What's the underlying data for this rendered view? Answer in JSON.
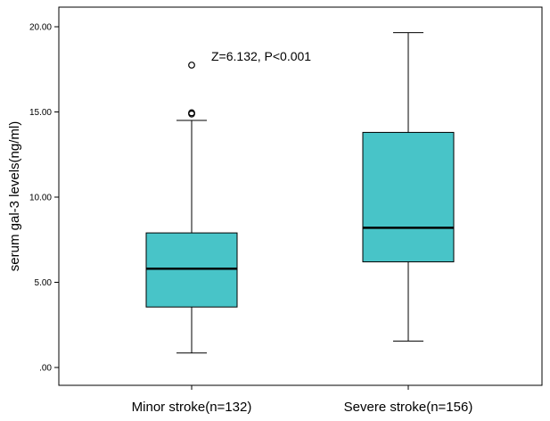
{
  "chart_data": {
    "type": "boxplot",
    "title": "",
    "xlabel": "",
    "ylabel": "serum gal-3 levels(ng/ml)",
    "ylim": [
      -1.0,
      21.0
    ],
    "y_ticks": [
      0,
      5,
      10,
      15,
      20
    ],
    "y_tick_labels": [
      ".00",
      "5.00",
      "10.00",
      "15.00",
      "20.00"
    ],
    "categories": [
      "Minor stroke(n=132)",
      "Severe stroke(n=156)"
    ],
    "boxes": [
      {
        "name": "Minor stroke(n=132)",
        "whisker_low": 0.85,
        "q1": 3.55,
        "median": 5.8,
        "q3": 7.9,
        "whisker_high": 14.5,
        "outliers": [
          17.75,
          14.95,
          14.88
        ]
      },
      {
        "name": "Severe stroke(n=156)",
        "whisker_low": 1.55,
        "q1": 6.2,
        "median": 8.2,
        "q3": 13.8,
        "whisker_high": 19.65,
        "outliers": []
      }
    ],
    "box_color": "#48c4c8",
    "annotation": "Z=6.132, P<0.001"
  }
}
